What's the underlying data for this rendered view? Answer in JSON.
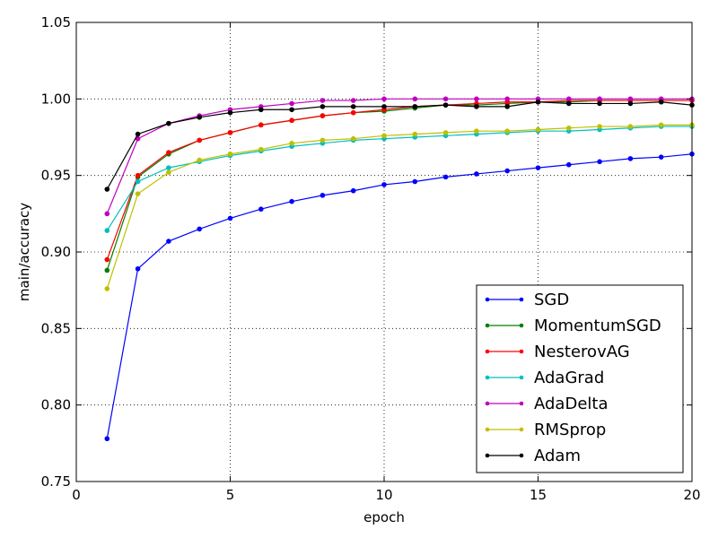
{
  "chart_data": {
    "type": "line",
    "xlabel": "epoch",
    "ylabel": "main/accuracy",
    "xlim": [
      0,
      20
    ],
    "ylim": [
      0.75,
      1.05
    ],
    "xticks": [
      "0",
      "5",
      "10",
      "15",
      "20"
    ],
    "yticks": [
      "0.75",
      "0.80",
      "0.85",
      "0.90",
      "0.95",
      "1.00",
      "1.05"
    ],
    "grid": true,
    "legend_position": "lower-right",
    "x": [
      1,
      2,
      3,
      4,
      5,
      6,
      7,
      8,
      9,
      10,
      11,
      12,
      13,
      14,
      15,
      16,
      17,
      18,
      19,
      20
    ],
    "series": [
      {
        "name": "SGD",
        "color": "#0000ff",
        "values": [
          0.778,
          0.889,
          0.907,
          0.915,
          0.922,
          0.928,
          0.933,
          0.937,
          0.94,
          0.944,
          0.946,
          0.949,
          0.951,
          0.953,
          0.955,
          0.957,
          0.959,
          0.961,
          0.962,
          0.964
        ]
      },
      {
        "name": "MomentumSGD",
        "color": "#008000",
        "values": [
          0.888,
          0.949,
          0.964,
          0.973,
          0.978,
          0.983,
          0.986,
          0.989,
          0.991,
          0.992,
          0.994,
          0.996,
          0.996,
          0.997,
          0.998,
          0.998,
          0.999,
          0.999,
          0.999,
          0.999
        ]
      },
      {
        "name": "NesterovAG",
        "color": "#ff0000",
        "values": [
          0.895,
          0.95,
          0.965,
          0.973,
          0.978,
          0.983,
          0.986,
          0.989,
          0.991,
          0.993,
          0.995,
          0.996,
          0.997,
          0.998,
          0.998,
          0.999,
          0.999,
          0.999,
          0.999,
          0.999
        ]
      },
      {
        "name": "AdaGrad",
        "color": "#00bfbf",
        "values": [
          0.914,
          0.946,
          0.955,
          0.959,
          0.963,
          0.966,
          0.969,
          0.971,
          0.973,
          0.974,
          0.975,
          0.976,
          0.977,
          0.978,
          0.979,
          0.979,
          0.98,
          0.981,
          0.982,
          0.982
        ]
      },
      {
        "name": "AdaDelta",
        "color": "#bf00bf",
        "values": [
          0.925,
          0.974,
          0.984,
          0.989,
          0.993,
          0.995,
          0.997,
          0.999,
          0.999,
          1.0,
          1.0,
          1.0,
          1.0,
          1.0,
          1.0,
          1.0,
          1.0,
          1.0,
          1.0,
          1.0
        ]
      },
      {
        "name": "RMSprop",
        "color": "#bfbf00",
        "values": [
          0.876,
          0.938,
          0.952,
          0.96,
          0.964,
          0.967,
          0.971,
          0.973,
          0.974,
          0.976,
          0.977,
          0.978,
          0.979,
          0.979,
          0.98,
          0.981,
          0.982,
          0.982,
          0.983,
          0.983
        ]
      },
      {
        "name": "Adam",
        "color": "#000000",
        "values": [
          0.941,
          0.977,
          0.984,
          0.988,
          0.991,
          0.993,
          0.993,
          0.995,
          0.995,
          0.995,
          0.995,
          0.996,
          0.995,
          0.995,
          0.998,
          0.997,
          0.997,
          0.997,
          0.998,
          0.996
        ]
      }
    ]
  }
}
